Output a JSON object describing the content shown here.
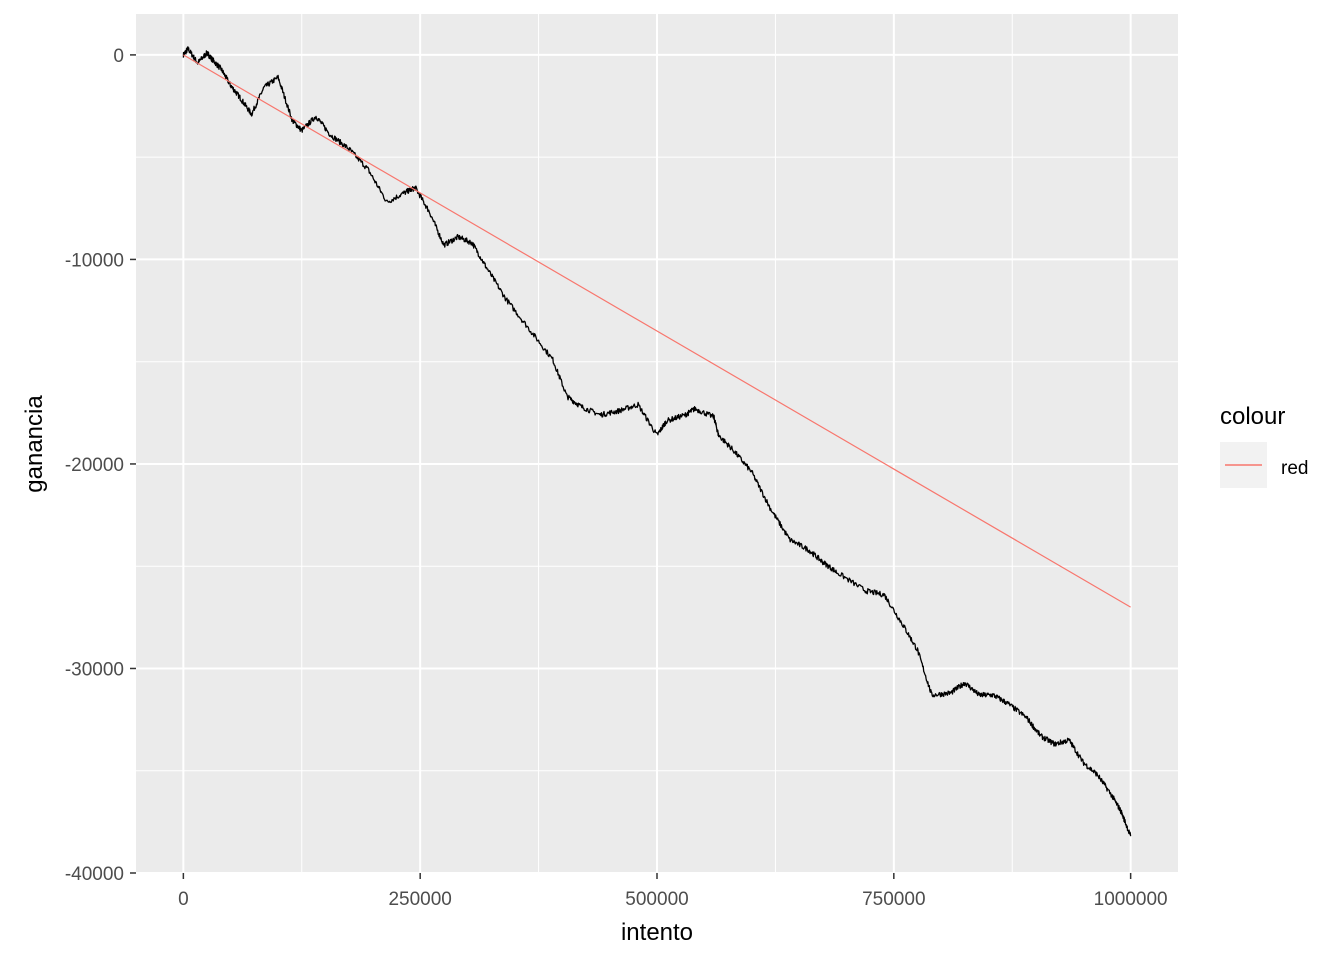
{
  "chart_data": {
    "type": "line",
    "title": "",
    "xlabel": "intento",
    "ylabel": "ganancia",
    "xlim": [
      -50000,
      1050000
    ],
    "ylim": [
      -40000,
      2000
    ],
    "x_ticks": [
      0,
      250000,
      500000,
      750000,
      1000000
    ],
    "x_tick_labels": [
      "0",
      "250000",
      "500000",
      "750000",
      "1000000"
    ],
    "y_ticks": [
      0,
      -10000,
      -20000,
      -30000,
      -40000
    ],
    "y_tick_labels": [
      "0",
      "-10000",
      "-20000",
      "-30000",
      "-40000"
    ],
    "grid": true,
    "panel_background": "#ebebeb",
    "grid_color": "#ffffff",
    "legend": {
      "title": "colour",
      "position": "right",
      "entries": [
        {
          "label": "red",
          "color": "#f8766d"
        }
      ]
    },
    "series": [
      {
        "color": "#000000",
        "x": [
          0,
          5000,
          15000,
          25000,
          30000,
          40000,
          50000,
          60000,
          72000,
          85000,
          100000,
          115000,
          125000,
          140000,
          155000,
          175000,
          195000,
          215000,
          235000,
          245000,
          260000,
          275000,
          290000,
          305000,
          320000,
          340000,
          365000,
          390000,
          405000,
          420000,
          440000,
          460000,
          480000,
          500000,
          510000,
          530000,
          540000,
          560000,
          565000,
          580000,
          600000,
          620000,
          640000,
          660000,
          675000,
          690000,
          720000,
          740000,
          760000,
          775000,
          790000,
          810000,
          825000,
          840000,
          855000,
          870000,
          890000,
          905000,
          920000,
          935000,
          950000,
          965000,
          980000,
          990000,
          1000000
        ],
        "y": [
          0,
          300,
          -400,
          100,
          -200,
          -700,
          -1500,
          -2100,
          -2900,
          -1600,
          -1100,
          -3200,
          -3700,
          -3000,
          -3900,
          -4600,
          -5600,
          -7200,
          -6700,
          -6500,
          -7700,
          -9300,
          -8900,
          -9200,
          -10400,
          -11900,
          -13400,
          -14900,
          -16700,
          -17200,
          -17600,
          -17400,
          -17100,
          -18600,
          -17900,
          -17600,
          -17300,
          -17700,
          -18600,
          -19300,
          -20400,
          -22200,
          -23700,
          -24200,
          -24800,
          -25300,
          -26200,
          -26400,
          -27900,
          -29100,
          -31300,
          -31200,
          -30700,
          -31300,
          -31300,
          -31700,
          -32400,
          -33300,
          -33700,
          -33500,
          -34600,
          -35200,
          -36200,
          -37000,
          -38200
        ]
      },
      {
        "name": "red",
        "color": "#f8766d",
        "x": [
          0,
          1000000
        ],
        "y": [
          0,
          -27000
        ]
      }
    ]
  }
}
